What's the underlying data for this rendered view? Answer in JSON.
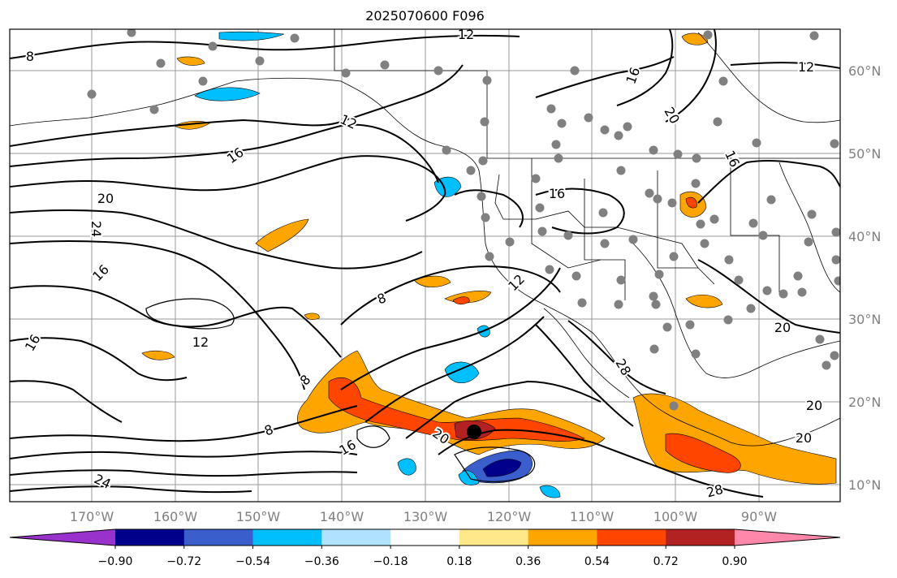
{
  "title": "2025070600 F096",
  "lat_labels": [
    "60°N",
    "50°N",
    "40°N",
    "30°N",
    "20°N",
    "10°N"
  ],
  "lon_labels": [
    "170°W",
    "160°W",
    "150°W",
    "140°W",
    "130°W",
    "120°W",
    "110°W",
    "100°W",
    "90°W"
  ],
  "colorbar": {
    "tick_labels": [
      "−0.90",
      "−0.72",
      "−0.54",
      "−0.36",
      "−0.18",
      "0.18",
      "0.36",
      "0.54",
      "0.72",
      "0.90"
    ],
    "colors": [
      "#9932cc",
      "#00008b",
      "#3a5fcd",
      "#00bfff",
      "#b0e2ff",
      "#ffffff",
      "#ffe88a",
      "#ffa500",
      "#ff4500",
      "#b22222",
      "#ff88aa"
    ]
  },
  "contour_labels": [
    "8",
    "12",
    "12",
    "12",
    "16",
    "16",
    "16",
    "20",
    "20",
    "24",
    "16",
    "12",
    "8",
    "8",
    "8",
    "16",
    "20",
    "24",
    "28",
    "28",
    "20",
    "20",
    "20",
    "16",
    "16",
    "12"
  ],
  "colors": {
    "grid": "#999999",
    "contour": "#000000",
    "station": "#808080"
  }
}
